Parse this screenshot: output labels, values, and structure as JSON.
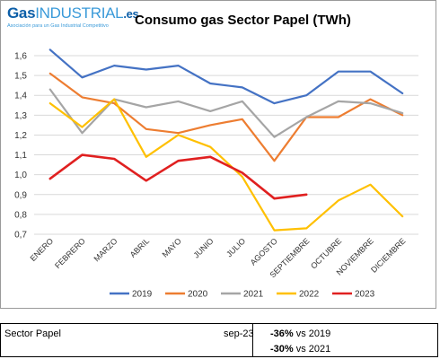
{
  "logo": {
    "gas": "Gas",
    "industrial": "INDUSTRIAL",
    "es": ".es",
    "tagline": "Asociación para un Gas Industrial Competitivo"
  },
  "chart_data": {
    "type": "line",
    "title": "Consumo gas Sector Papel (TWh)",
    "xlabel": "",
    "ylabel": "",
    "ylim": [
      0.7,
      1.6
    ],
    "yticks": [
      "0,7",
      "0,8",
      "0,9",
      "1,0",
      "1,1",
      "1,2",
      "1,3",
      "1,4",
      "1,5",
      "1,6"
    ],
    "grid": true,
    "legend_position": "bottom",
    "categories": [
      "ENERO",
      "FEBRERO",
      "MARZO",
      "ABRIL",
      "MAYO",
      "JUNIO",
      "JULIO",
      "AGOSTO",
      "SEPTIEMBRE",
      "OCTUBRE",
      "NOVIEMBRE",
      "DICIEMBRE"
    ],
    "series": [
      {
        "name": "2019",
        "color": "#4472c4",
        "values": [
          1.63,
          1.49,
          1.55,
          1.53,
          1.55,
          1.46,
          1.44,
          1.36,
          1.4,
          1.52,
          1.52,
          1.41
        ]
      },
      {
        "name": "2020",
        "color": "#ed7d31",
        "values": [
          1.51,
          1.39,
          1.36,
          1.23,
          1.21,
          1.25,
          1.28,
          1.07,
          1.29,
          1.29,
          1.38,
          1.3
        ]
      },
      {
        "name": "2021",
        "color": "#a5a5a5",
        "values": [
          1.43,
          1.21,
          1.38,
          1.34,
          1.37,
          1.32,
          1.37,
          1.19,
          1.29,
          1.37,
          1.36,
          1.31
        ]
      },
      {
        "name": "2022",
        "color": "#ffc000",
        "values": [
          1.36,
          1.24,
          1.38,
          1.09,
          1.2,
          1.14,
          0.99,
          0.72,
          0.73,
          0.87,
          0.95,
          0.79
        ]
      },
      {
        "name": "2023",
        "color": "#e02020",
        "values": [
          0.98,
          1.1,
          1.08,
          0.97,
          1.07,
          1.09,
          1.01,
          0.88,
          0.9,
          null,
          null,
          null
        ]
      }
    ]
  },
  "summary": {
    "label": "Sector Papel",
    "period": "sep-23",
    "row1_pct": "-36%",
    "row1_text": "vs 2019",
    "row2_pct": "-30%",
    "row2_text": "vs 2021"
  }
}
